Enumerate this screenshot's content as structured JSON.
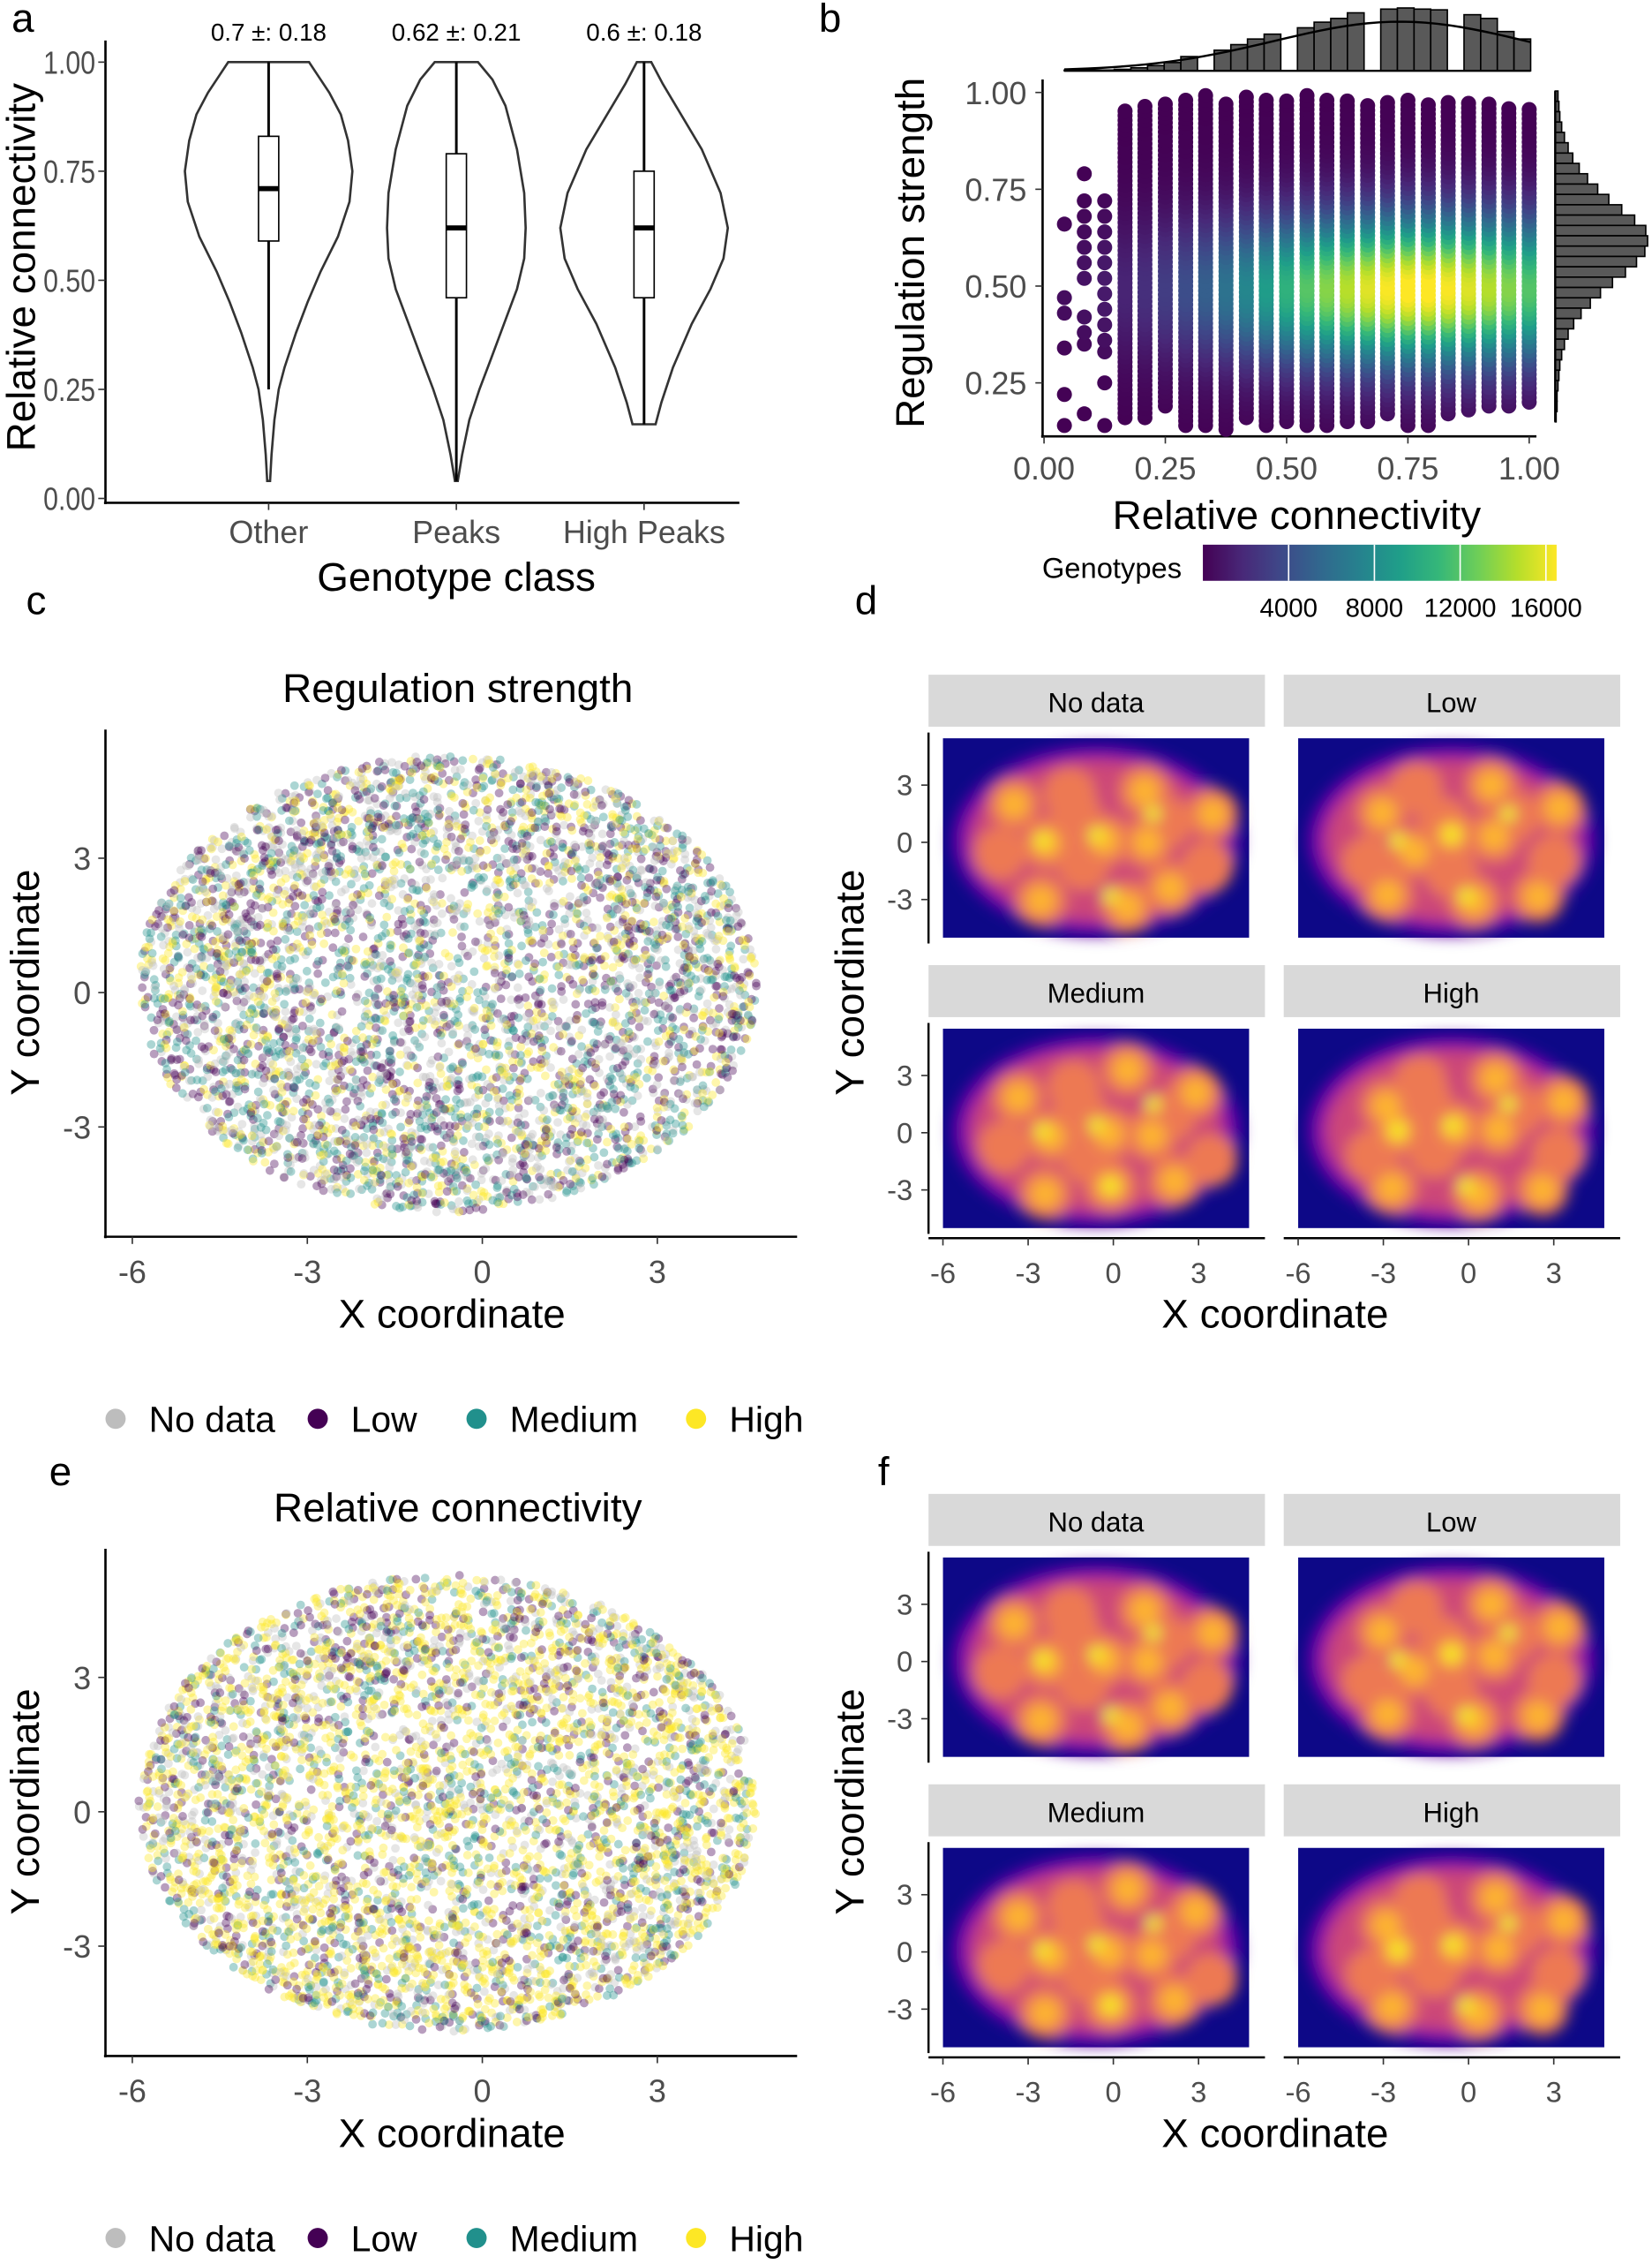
{
  "panel_labels": [
    "a",
    "b",
    "c",
    "d",
    "e",
    "f"
  ],
  "chart_data": [
    {
      "panel": "a",
      "type": "violin",
      "xlabel": "Genotype class",
      "ylabel": "Relative connectivity",
      "categories": [
        "Other",
        "Peaks",
        "High Peaks"
      ],
      "annotations": [
        "0.7 ±: 0.18",
        "0.62 ±: 0.21",
        "0.6 ±: 0.18"
      ],
      "yticks": [
        "0.00",
        "0.25",
        "0.50",
        "0.75",
        "1.00"
      ],
      "ylim": [
        0,
        1
      ],
      "boxes": [
        {
          "category": "Other",
          "whisker_low": 0.25,
          "q1": 0.59,
          "median": 0.71,
          "q3": 0.83,
          "whisker_high": 1.0,
          "min": 0.04,
          "max": 1.0
        },
        {
          "category": "Peaks",
          "whisker_low": 0.04,
          "q1": 0.46,
          "median": 0.62,
          "q3": 0.79,
          "whisker_high": 1.0,
          "min": 0.04,
          "max": 1.0
        },
        {
          "category": "High Peaks",
          "whisker_low": 0.17,
          "q1": 0.46,
          "median": 0.62,
          "q3": 0.75,
          "whisker_high": 1.0,
          "min": 0.17,
          "max": 1.0
        }
      ]
    },
    {
      "panel": "b",
      "type": "scatter",
      "xlabel": "Relative connectivity",
      "ylabel": "Regulation strength",
      "xticks": [
        "0.00",
        "0.25",
        "0.50",
        "0.75",
        "1.00"
      ],
      "yticks": [
        "0.25",
        "0.50",
        "0.75",
        "1.00"
      ],
      "xlim": [
        0,
        1
      ],
      "ylim": [
        0.12,
        1.02
      ],
      "colorbar": {
        "title": "Genotypes",
        "ticks": [
          "4000",
          "8000",
          "12000",
          "16000"
        ],
        "range": [
          0,
          16500
        ],
        "palette": "viridis"
      },
      "columns": [
        {
          "x": 0.042,
          "y": [
            0.14,
            0.22,
            0.34,
            0.43,
            0.47,
            0.66
          ]
        },
        {
          "x": 0.083,
          "y": [
            0.17,
            0.35,
            0.38,
            0.42,
            0.52,
            0.56,
            0.6,
            0.64,
            0.68,
            0.72,
            0.79
          ]
        },
        {
          "x": 0.125,
          "y": [
            0.14,
            0.25,
            0.33,
            0.36,
            0.4,
            0.44,
            0.48,
            0.52,
            0.56,
            0.6,
            0.64,
            0.68,
            0.72
          ]
        },
        {
          "x": 0.167,
          "ymin": 0.16,
          "ymax": 0.96
        },
        {
          "x": 0.208,
          "ymin": 0.16,
          "ymax": 0.97
        },
        {
          "x": 0.25,
          "ymin": 0.19,
          "ymax": 0.97
        },
        {
          "x": 0.292,
          "ymin": 0.14,
          "ymax": 0.99
        },
        {
          "x": 0.333,
          "ymin": 0.14,
          "ymax": 1.0
        },
        {
          "x": 0.375,
          "ymin": 0.13,
          "ymax": 0.97
        },
        {
          "x": 0.417,
          "ymin": 0.16,
          "ymax": 0.99
        },
        {
          "x": 0.458,
          "ymin": 0.14,
          "ymax": 0.99
        },
        {
          "x": 0.5,
          "ymin": 0.15,
          "ymax": 0.98
        },
        {
          "x": 0.542,
          "ymin": 0.14,
          "ymax": 1.0
        },
        {
          "x": 0.583,
          "ymin": 0.14,
          "ymax": 0.99
        },
        {
          "x": 0.625,
          "ymin": 0.15,
          "ymax": 0.98
        },
        {
          "x": 0.667,
          "ymin": 0.15,
          "ymax": 0.97
        },
        {
          "x": 0.708,
          "ymin": 0.17,
          "ymax": 0.98
        },
        {
          "x": 0.75,
          "ymin": 0.14,
          "ymax": 0.98
        },
        {
          "x": 0.792,
          "ymin": 0.14,
          "ymax": 0.97
        },
        {
          "x": 0.833,
          "ymin": 0.17,
          "ymax": 0.98
        },
        {
          "x": 0.875,
          "ymin": 0.18,
          "ymax": 0.98
        },
        {
          "x": 0.917,
          "ymin": 0.19,
          "ymax": 0.97
        },
        {
          "x": 0.958,
          "ymin": 0.19,
          "ymax": 0.96
        },
        {
          "x": 1.0,
          "ymin": 0.2,
          "ymax": 0.96
        }
      ],
      "density_peak": {
        "x": 0.77,
        "y": 0.5
      },
      "top_histogram_relative": [
        2,
        2,
        2,
        4,
        8,
        14,
        22,
        38,
        0,
        55,
        70,
        85,
        98,
        0,
        115,
        130,
        140,
        155,
        0,
        165,
        168,
        165,
        163,
        0,
        150,
        140,
        105,
        85
      ],
      "right_histogram_relative": [
        3,
        4,
        5,
        7,
        10,
        14,
        19,
        26,
        35,
        46,
        58,
        72,
        86,
        98,
        100,
        97,
        88,
        76,
        62,
        49,
        38,
        28,
        20,
        14,
        10,
        7,
        5,
        4,
        3,
        2,
        2,
        1
      ]
    },
    {
      "panel": "c",
      "type": "scatter",
      "title": "Regulation strength",
      "xlabel": "X coordinate",
      "ylabel": "Y coordinate",
      "xticks": [
        "-6",
        "-3",
        "0",
        "3"
      ],
      "yticks": [
        "-3",
        "0",
        "3"
      ],
      "legend": [
        {
          "label": "No data",
          "color": "#bdbdbd"
        },
        {
          "label": "Low",
          "color": "#440154"
        },
        {
          "label": "Medium",
          "color": "#21908c"
        },
        {
          "label": "High",
          "color": "#fde725"
        }
      ],
      "legend_position": "bottom"
    },
    {
      "panel": "d",
      "type": "heatmap",
      "facets": [
        "No data",
        "Low",
        "Medium",
        "High"
      ],
      "xlabel": "X coordinate",
      "ylabel": "Y coordinate",
      "xticks": [
        "-6",
        "-3",
        "0",
        "3"
      ],
      "yticks": [
        "3",
        "0",
        "-3"
      ],
      "palette": "plasma"
    },
    {
      "panel": "e",
      "type": "scatter",
      "title": "Relative connectivity",
      "xlabel": "X coordinate",
      "ylabel": "Y coordinate",
      "xticks": [
        "-6",
        "-3",
        "0",
        "3"
      ],
      "yticks": [
        "-3",
        "0",
        "3"
      ],
      "legend": [
        {
          "label": "No data",
          "color": "#bdbdbd"
        },
        {
          "label": "Low",
          "color": "#440154"
        },
        {
          "label": "Medium",
          "color": "#21908c"
        },
        {
          "label": "High",
          "color": "#fde725"
        }
      ],
      "legend_position": "bottom"
    },
    {
      "panel": "f",
      "type": "heatmap",
      "facets": [
        "No data",
        "Low",
        "Medium",
        "High"
      ],
      "xlabel": "X coordinate",
      "ylabel": "Y coordinate",
      "xticks": [
        "-6",
        "-3",
        "0",
        "3"
      ],
      "yticks": [
        "3",
        "0",
        "-3"
      ],
      "palette": "plasma"
    }
  ]
}
